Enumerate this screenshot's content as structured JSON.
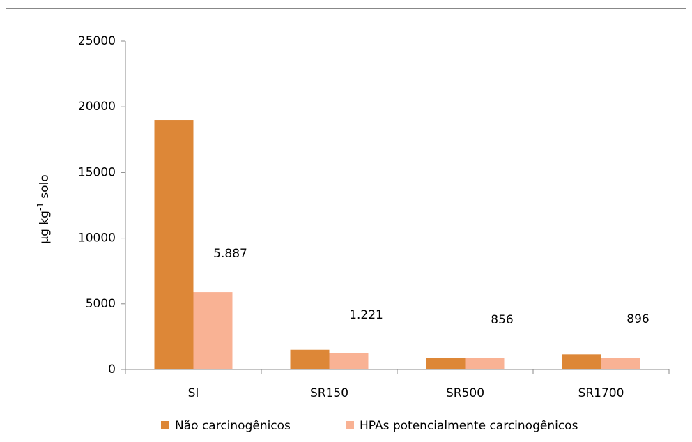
{
  "chart_data": {
    "type": "bar",
    "y_label": {
      "base": "μg kg",
      "superscript": "-1",
      "rest": " solo"
    },
    "categories": [
      "SI",
      "SR150",
      "SR500",
      "SR1700"
    ],
    "series": [
      {
        "name": "Não carcinogênicos",
        "color": "#dd8737",
        "values": [
          19000,
          1500,
          850,
          1150
        ]
      },
      {
        "name": "HPAs potencialmente carcinogênicos",
        "color": "#f9b294",
        "values": [
          5887,
          1221,
          856,
          896
        ],
        "value_labels": [
          "5.887",
          "1.221",
          "856",
          "896"
        ]
      }
    ],
    "ylim": [
      0,
      25000
    ],
    "yticks": [
      0,
      5000,
      10000,
      15000,
      20000,
      25000
    ],
    "grid": false,
    "legend": "bottom"
  }
}
